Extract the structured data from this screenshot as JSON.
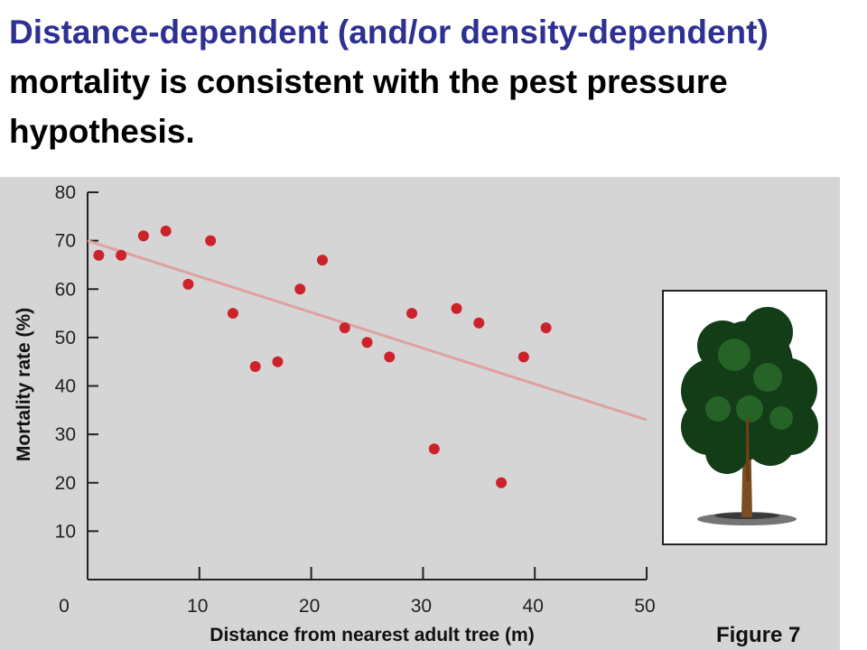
{
  "headline": {
    "blue_part": "Distance-dependent (and/or density-dependent)",
    "black_part": " mortality is consistent with the pest pressure hypothesis."
  },
  "figure_label": "Figure 7",
  "colors": {
    "headline_blue": "#2e3192",
    "panel_bg": "#d5d5d5",
    "point": "#cc2229",
    "trendline": "#e0a0a0"
  },
  "chart_data": {
    "type": "scatter",
    "xlabel": "Distance from nearest adult tree (m)",
    "ylabel": "Mortality rate (%)",
    "xlim": [
      0,
      50
    ],
    "ylim": [
      0,
      80
    ],
    "x_ticks": [
      0,
      10,
      20,
      30,
      40,
      50
    ],
    "y_ticks": [
      10,
      20,
      30,
      40,
      50,
      60,
      70,
      80
    ],
    "grid": false,
    "points": [
      {
        "x": 1,
        "y": 67
      },
      {
        "x": 3,
        "y": 67
      },
      {
        "x": 5,
        "y": 71
      },
      {
        "x": 7,
        "y": 72
      },
      {
        "x": 9,
        "y": 61
      },
      {
        "x": 11,
        "y": 70
      },
      {
        "x": 13,
        "y": 55
      },
      {
        "x": 15,
        "y": 44
      },
      {
        "x": 17,
        "y": 45
      },
      {
        "x": 19,
        "y": 60
      },
      {
        "x": 21,
        "y": 66
      },
      {
        "x": 23,
        "y": 52
      },
      {
        "x": 25,
        "y": 49
      },
      {
        "x": 27,
        "y": 46
      },
      {
        "x": 29,
        "y": 55
      },
      {
        "x": 31,
        "y": 27
      },
      {
        "x": 33,
        "y": 56
      },
      {
        "x": 35,
        "y": 53
      },
      {
        "x": 37,
        "y": 20
      },
      {
        "x": 39,
        "y": 46
      },
      {
        "x": 41,
        "y": 52
      }
    ],
    "trendline": {
      "x": [
        0,
        50
      ],
      "y": [
        70,
        33
      ]
    }
  },
  "inset": {
    "icon": "tree-icon"
  }
}
